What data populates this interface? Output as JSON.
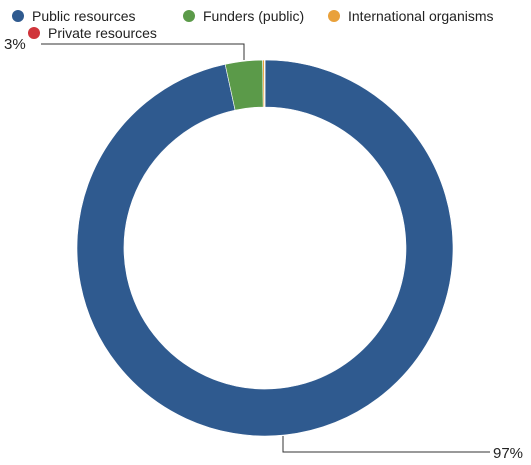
{
  "chart_data": {
    "type": "pie",
    "donut": true,
    "series": [
      {
        "name": "Public resources",
        "value": 96.6,
        "color": "#2f5a8f"
      },
      {
        "name": "Funders (public)",
        "value": 3.2,
        "color": "#5b9a49"
      },
      {
        "name": "International organisms",
        "value": 0.15,
        "color": "#e9a13b"
      },
      {
        "name": "Private resources",
        "value": 0.05,
        "color": "#d0343a"
      }
    ],
    "data_labels": {
      "public": "97%",
      "funders": "3%"
    },
    "legend_placement": "top-left"
  }
}
